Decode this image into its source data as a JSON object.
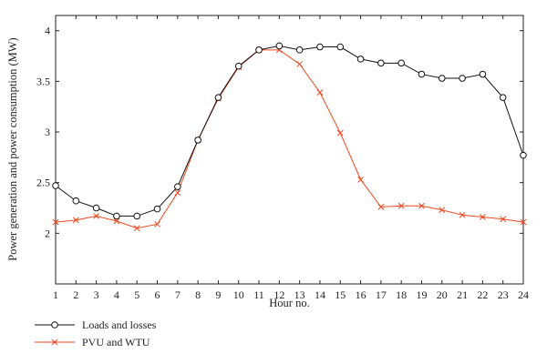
{
  "chart_data": {
    "type": "line",
    "xlabel": "Hour no.",
    "ylabel": "Power generation and power consumption (MW)",
    "x": [
      1,
      2,
      3,
      4,
      5,
      6,
      7,
      8,
      9,
      10,
      11,
      12,
      13,
      14,
      15,
      16,
      17,
      18,
      19,
      20,
      21,
      22,
      23,
      24
    ],
    "xlim": [
      1,
      24
    ],
    "ylim": [
      1.5,
      4.15
    ],
    "yticks": [
      "2",
      "2.5",
      "3",
      "3.5",
      "4"
    ],
    "xticks": [
      "1",
      "2",
      "3",
      "4",
      "5",
      "6",
      "7",
      "8",
      "9",
      "10",
      "11",
      "12",
      "13",
      "14",
      "15",
      "16",
      "17",
      "18",
      "19",
      "20",
      "21",
      "22",
      "23",
      "24"
    ],
    "grid": false,
    "legend_position": "bottom-left",
    "series": [
      {
        "name": "Loads and losses",
        "color": "#111111",
        "marker": "circle",
        "values": [
          2.47,
          2.32,
          2.25,
          2.17,
          2.17,
          2.24,
          2.46,
          2.92,
          3.34,
          3.65,
          3.81,
          3.85,
          3.81,
          3.84,
          3.84,
          3.72,
          3.68,
          3.68,
          3.57,
          3.53,
          3.53,
          3.57,
          3.34,
          2.77
        ]
      },
      {
        "name": "PVU and WTU",
        "color": "#f0471f",
        "marker": "x",
        "values": [
          2.11,
          2.13,
          2.17,
          2.12,
          2.05,
          2.09,
          2.4,
          2.92,
          3.33,
          3.64,
          3.81,
          3.81,
          3.67,
          3.39,
          2.99,
          2.53,
          2.26,
          2.27,
          2.27,
          2.23,
          2.18,
          2.16,
          2.14,
          2.11
        ]
      }
    ]
  }
}
